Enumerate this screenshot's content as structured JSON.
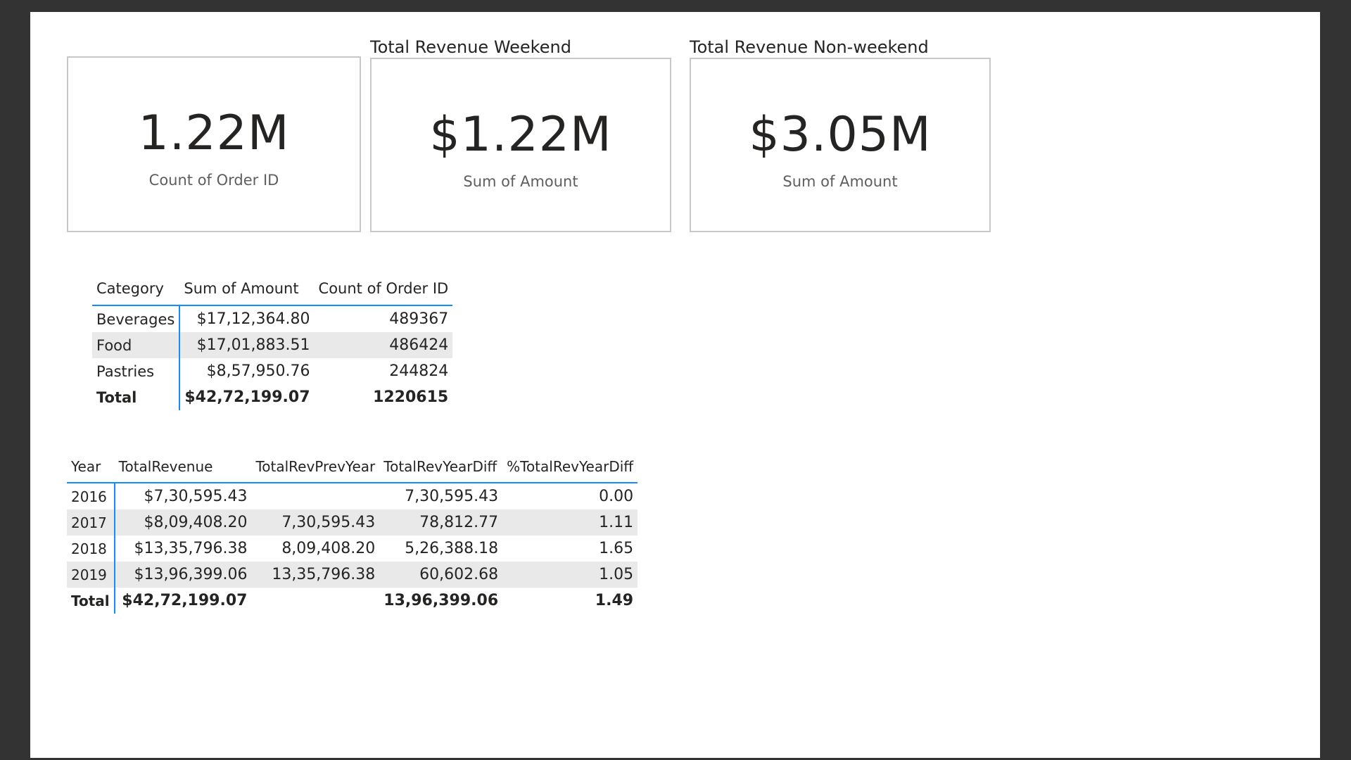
{
  "cards": [
    {
      "title": "",
      "value": "1.22M",
      "label": "Count of Order ID"
    },
    {
      "title": "Total Revenue Weekend",
      "value": "$1.22M",
      "label": "Sum of Amount"
    },
    {
      "title": "Total Revenue Non-weekend",
      "value": "$3.05M",
      "label": "Sum of Amount"
    }
  ],
  "category_table": {
    "headers": [
      "Category",
      "Sum of Amount",
      "Count of Order ID"
    ],
    "rows": [
      [
        "Beverages",
        "$17,12,364.80",
        "489367"
      ],
      [
        "Food",
        "$17,01,883.51",
        "486424"
      ],
      [
        "Pastries",
        "$8,57,950.76",
        "244824"
      ]
    ],
    "total": [
      "Total",
      "$42,72,199.07",
      "1220615"
    ]
  },
  "year_table": {
    "headers": [
      "Year",
      "TotalRevenue",
      "TotalRevPrevYear",
      "TotalRevYearDiff",
      "%TotalRevYearDiff"
    ],
    "rows": [
      [
        "2016",
        "$7,30,595.43",
        "",
        "7,30,595.43",
        "0.00"
      ],
      [
        "2017",
        "$8,09,408.20",
        "7,30,595.43",
        "78,812.77",
        "1.11"
      ],
      [
        "2018",
        "$13,35,796.38",
        "8,09,408.20",
        "5,26,388.18",
        "1.65"
      ],
      [
        "2019",
        "$13,96,399.06",
        "13,35,796.38",
        "60,602.68",
        "1.05"
      ]
    ],
    "total": [
      "Total",
      "$42,72,199.07",
      "",
      "13,96,399.06",
      "1.49"
    ]
  }
}
